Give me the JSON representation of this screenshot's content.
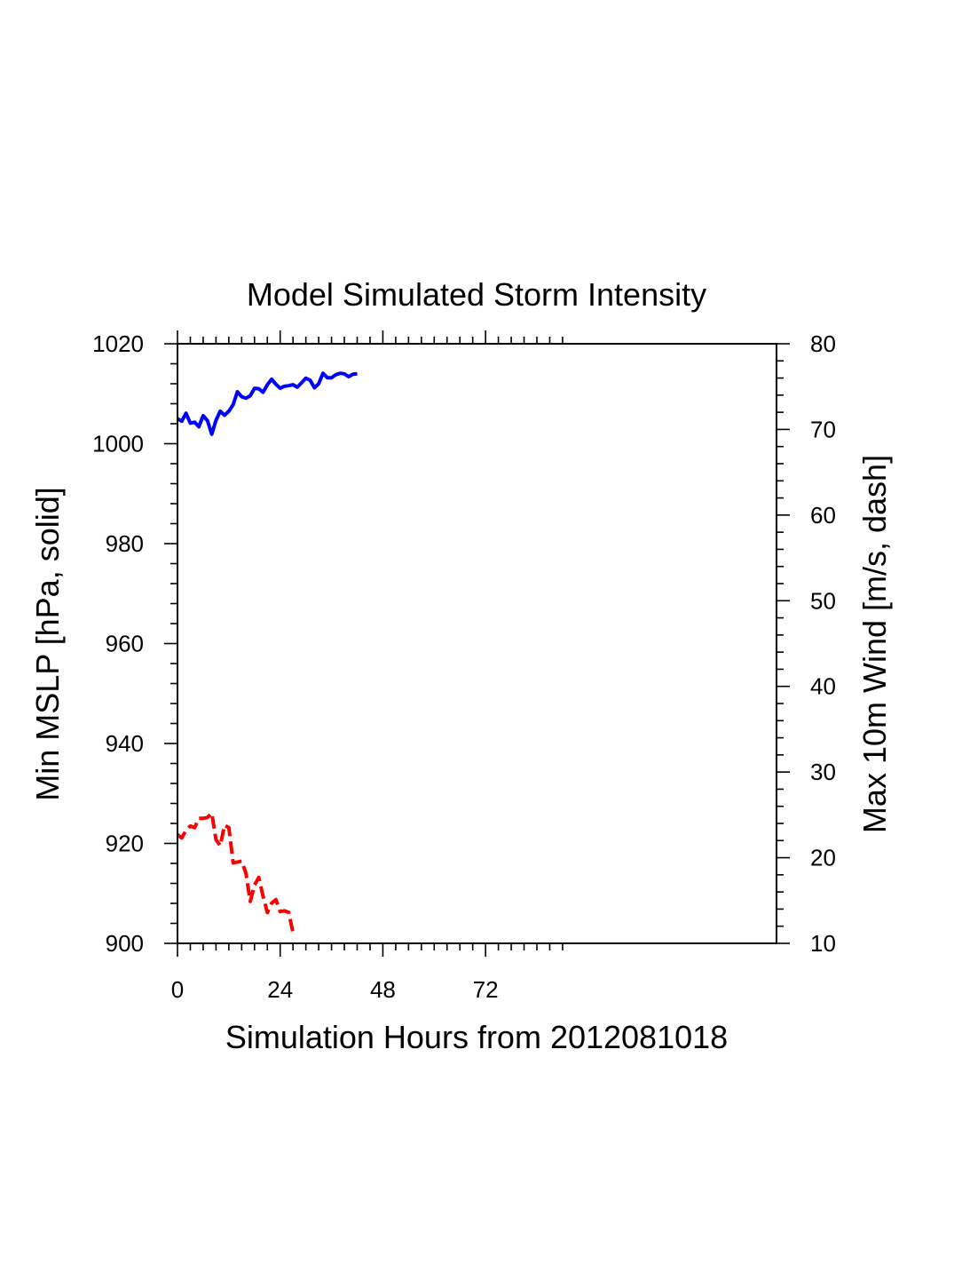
{
  "chart_data": {
    "type": "line",
    "title": "Model Simulated Storm Intensity",
    "xlabel": "Simulation Hours from 2012081018",
    "ylabel_left": "Min MSLP  [hPa, solid]",
    "ylabel_right": "Max 10m Wind  [m/s, dash]",
    "xlim": [
      0,
      140
    ],
    "ylim_left": [
      900,
      1020
    ],
    "ylim_right": [
      10,
      80
    ],
    "x_ticks": [
      0,
      24,
      48,
      72
    ],
    "x_tick_labels": [
      "0",
      "24",
      "48",
      "72"
    ],
    "y_left_ticks": [
      900,
      920,
      940,
      960,
      980,
      1000,
      1020
    ],
    "y_left_tick_labels": [
      "900",
      "920",
      "940",
      "960",
      "980",
      "1000",
      "1020"
    ],
    "y_right_ticks": [
      10,
      20,
      30,
      40,
      50,
      60,
      70,
      80
    ],
    "y_right_tick_labels": [
      "10",
      "20",
      "30",
      "40",
      "50",
      "60",
      "70",
      "80"
    ],
    "series": [
      {
        "name": "Min MSLP",
        "axis": "left",
        "color": "#0000ff",
        "style": "solid",
        "x": [
          0,
          1,
          2,
          3,
          4,
          5,
          6,
          7,
          8,
          9,
          10,
          11,
          12,
          13,
          14,
          15,
          16,
          17,
          18,
          19,
          20,
          21,
          22,
          23,
          24,
          25,
          26,
          27,
          28,
          29,
          30,
          31,
          32,
          33,
          34,
          35,
          36,
          37,
          38,
          39,
          40,
          41,
          42
        ],
        "y": [
          1005.0,
          1004.5,
          1006.1,
          1004.1,
          1004.3,
          1003.4,
          1005.6,
          1004.6,
          1001.9,
          1004.7,
          1006.5,
          1005.7,
          1006.5,
          1007.8,
          1010.4,
          1009.4,
          1009.1,
          1009.6,
          1011.1,
          1011.0,
          1010.3,
          1011.8,
          1012.9,
          1011.9,
          1011.1,
          1011.5,
          1011.6,
          1011.8,
          1011.3,
          1012.2,
          1013.1,
          1012.7,
          1011.2,
          1012.0,
          1014.1,
          1013.2,
          1013.2,
          1013.8,
          1014.1,
          1014.0,
          1013.4,
          1013.9,
          1014.0
        ]
      },
      {
        "name": "Max 10m Wind",
        "axis": "right",
        "color": "#ff0000",
        "style": "dash",
        "x": [
          0,
          1,
          2,
          3,
          4,
          5,
          6,
          7,
          8,
          9,
          10,
          11,
          12,
          13,
          14,
          15,
          16,
          17,
          18,
          19,
          20,
          21,
          22,
          23,
          24,
          25,
          26,
          27
        ],
        "y": [
          22.7,
          22.3,
          23.2,
          23.7,
          23.5,
          24.6,
          24.6,
          24.7,
          25.2,
          22.1,
          21.4,
          23.8,
          23.5,
          19.4,
          19.5,
          19.6,
          18.2,
          14.9,
          16.8,
          17.7,
          15.5,
          13.6,
          14.7,
          15.1,
          13.7,
          13.8,
          13.6,
          11.2
        ]
      }
    ]
  }
}
